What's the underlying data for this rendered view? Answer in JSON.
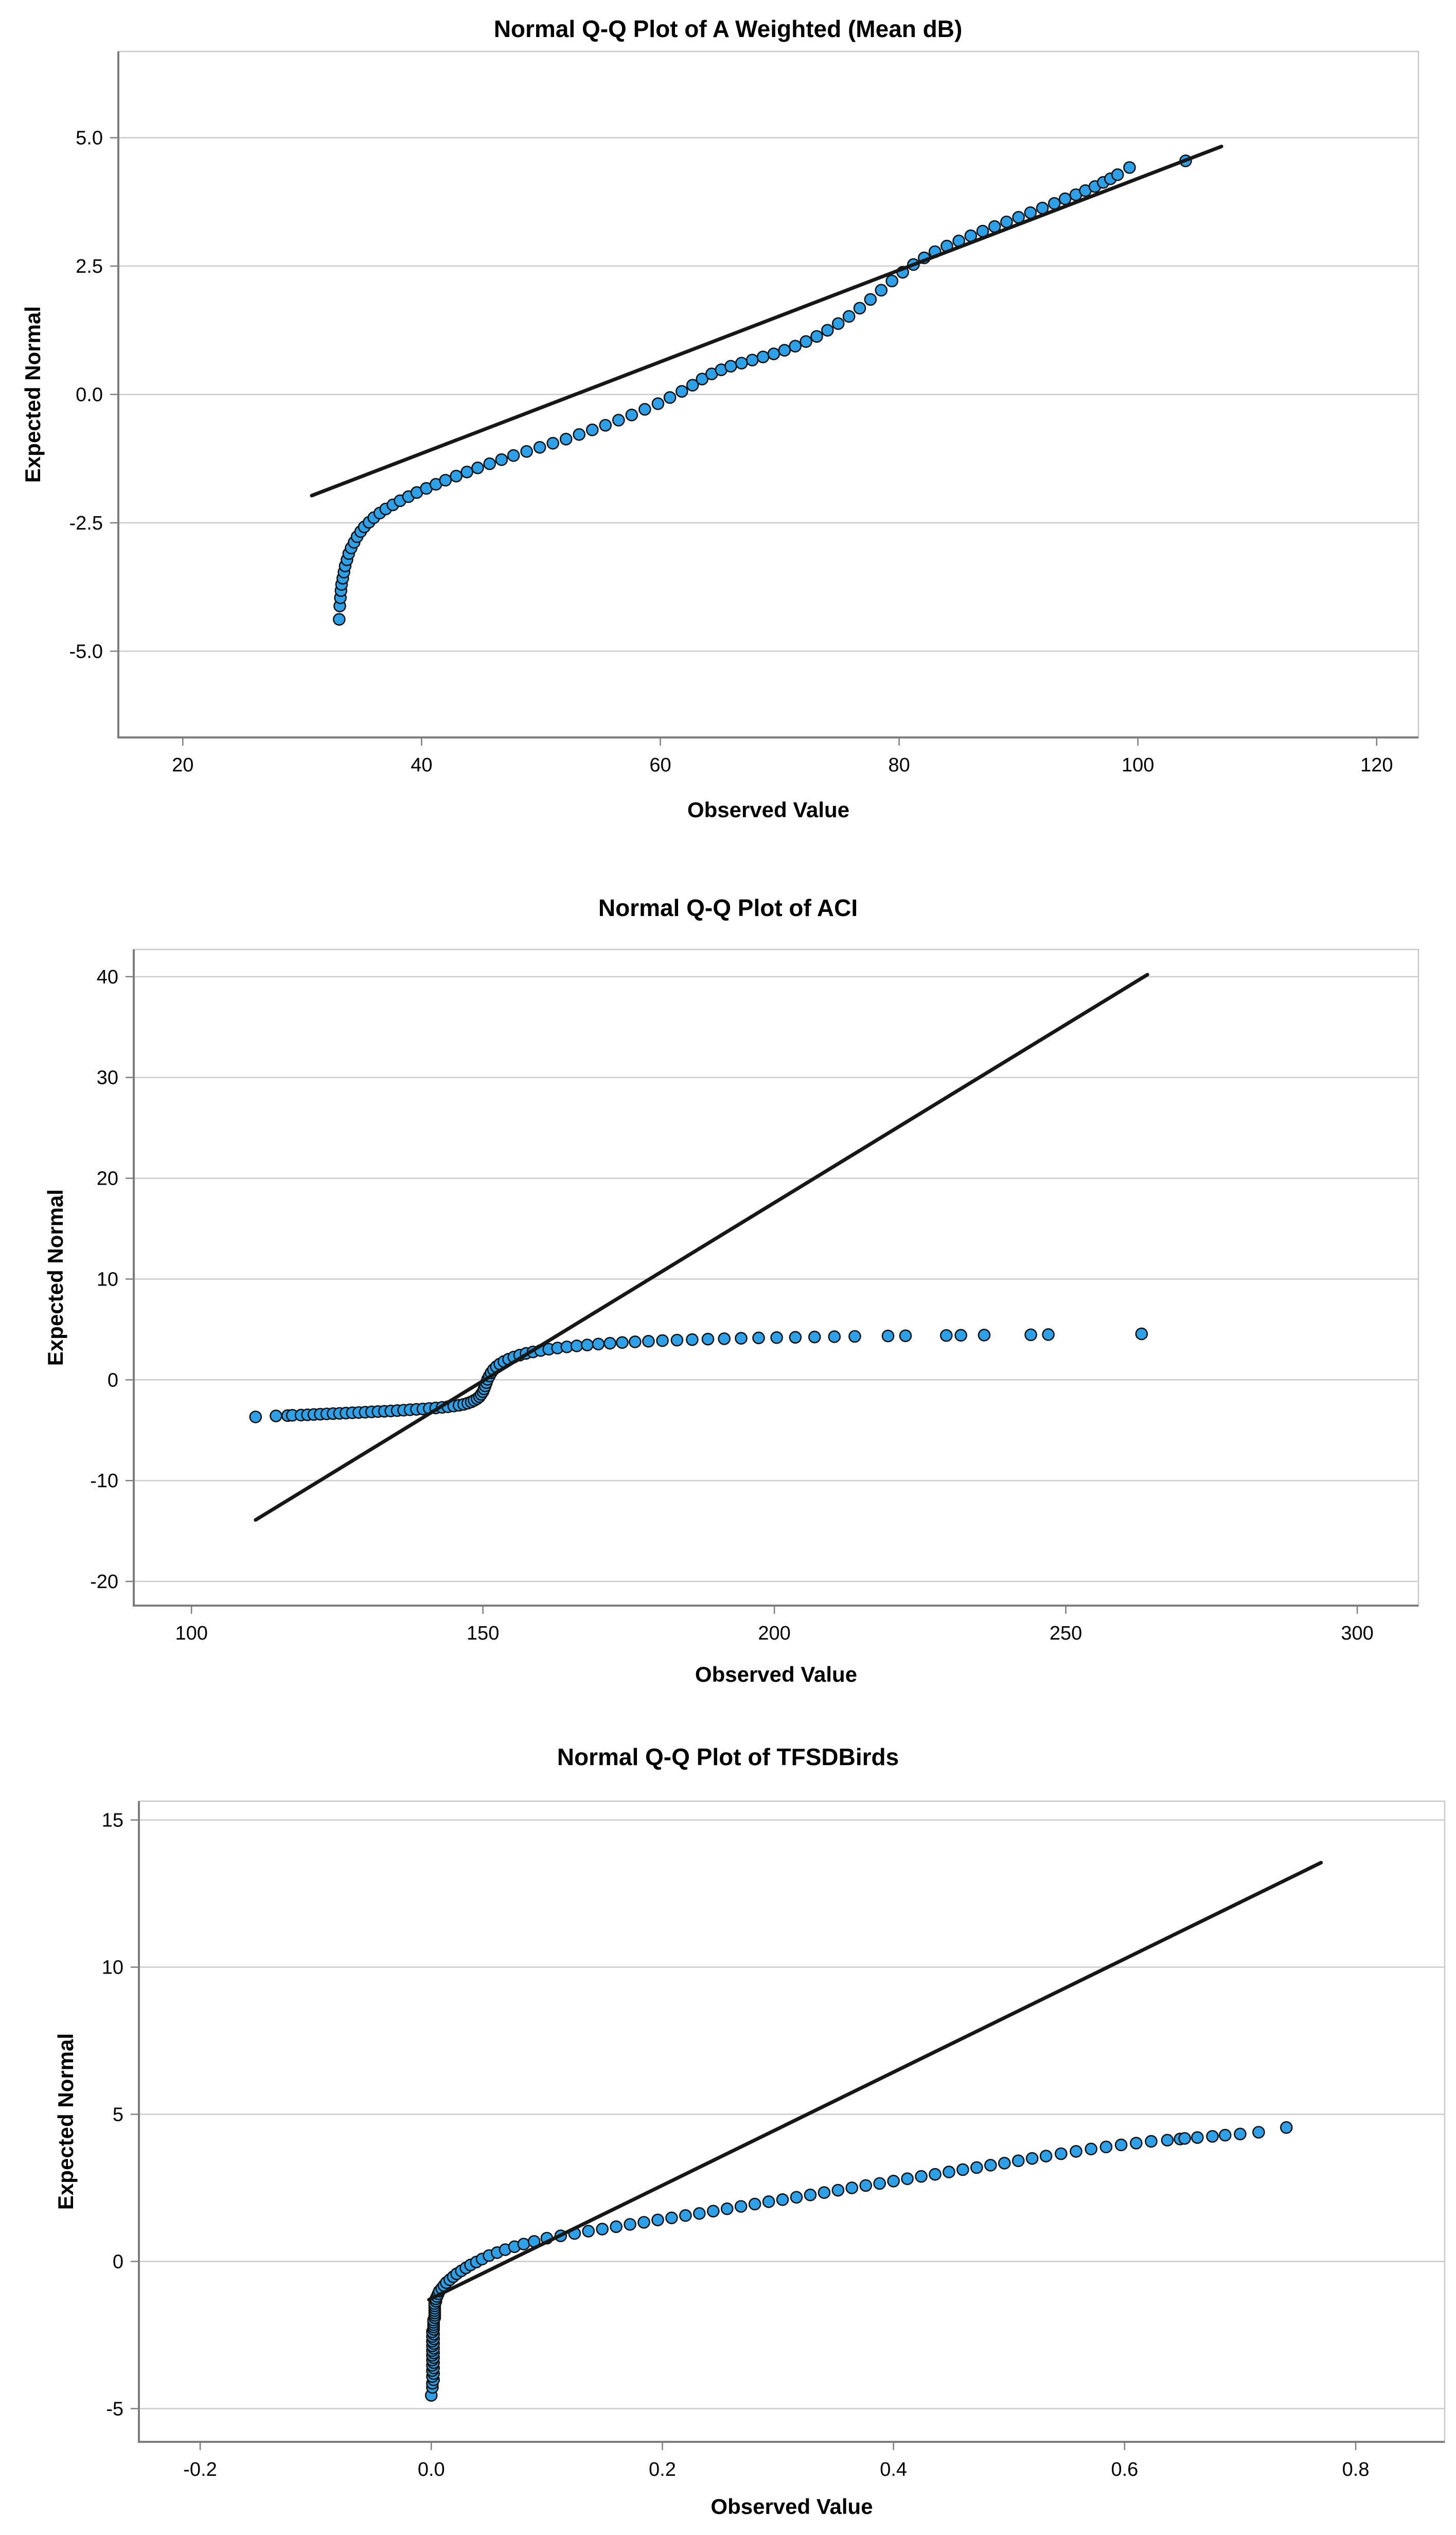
{
  "page": {
    "background": "#ffffff"
  },
  "style": {
    "point_fill": "#2da0e8",
    "point_stroke": "#111111",
    "line_color": "#171717",
    "grid_color": "#cccccc",
    "frame_color": "#c9c9c9",
    "axis_color": "#7d7d7d",
    "text_color": "#000000"
  },
  "chart_data": [
    {
      "type": "scatter",
      "title": "Normal Q-Q Plot of A Weighted (Mean dB)",
      "xlabel": "Observed Value",
      "ylabel": "Expected Normal",
      "xtick_values": [
        20,
        40,
        60,
        80,
        100,
        120
      ],
      "xtick_labels": [
        "20",
        "40",
        "60",
        "80",
        "100",
        "120"
      ],
      "ytick_values": [
        5.0,
        2.5,
        0.0,
        -2.5,
        -5.0
      ],
      "ytick_labels": [
        "5.0",
        "2.5",
        "0.0",
        "-2.5",
        "-5.0"
      ],
      "xlim": [
        14.6,
        123.5
      ],
      "ylim": [
        -6.68,
        6.68
      ],
      "grid": true,
      "legend": "none",
      "ref_line": {
        "x1": 30.8,
        "y1": -1.97,
        "x2": 107.0,
        "y2": 4.83
      },
      "points": [
        [
          33.1,
          -4.38
        ],
        [
          33.15,
          -4.12
        ],
        [
          33.2,
          -3.96
        ],
        [
          33.25,
          -3.82
        ],
        [
          33.3,
          -3.7
        ],
        [
          33.4,
          -3.58
        ],
        [
          33.5,
          -3.46
        ],
        [
          33.6,
          -3.34
        ],
        [
          33.75,
          -3.22
        ],
        [
          33.9,
          -3.1
        ],
        [
          34.1,
          -2.99
        ],
        [
          34.35,
          -2.88
        ],
        [
          34.6,
          -2.77
        ],
        [
          34.9,
          -2.67
        ],
        [
          35.2,
          -2.58
        ],
        [
          35.6,
          -2.49
        ],
        [
          36,
          -2.4
        ],
        [
          36.5,
          -2.31
        ],
        [
          37,
          -2.23
        ],
        [
          37.6,
          -2.15
        ],
        [
          38.2,
          -2.07
        ],
        [
          38.9,
          -1.99
        ],
        [
          39.6,
          -1.91
        ],
        [
          40.4,
          -1.83
        ],
        [
          41.2,
          -1.75
        ],
        [
          42,
          -1.67
        ],
        [
          42.9,
          -1.59
        ],
        [
          43.8,
          -1.51
        ],
        [
          44.7,
          -1.43
        ],
        [
          45.7,
          -1.35
        ],
        [
          46.7,
          -1.27
        ],
        [
          47.7,
          -1.19
        ],
        [
          48.8,
          -1.11
        ],
        [
          49.9,
          -1.03
        ],
        [
          51,
          -0.95
        ],
        [
          52.1,
          -0.87
        ],
        [
          53.2,
          -0.78
        ],
        [
          54.3,
          -0.69
        ],
        [
          55.4,
          -0.6
        ],
        [
          56.5,
          -0.5
        ],
        [
          57.6,
          -0.4
        ],
        [
          58.7,
          -0.29
        ],
        [
          59.8,
          -0.18
        ],
        [
          60.8,
          -0.06
        ],
        [
          61.8,
          0.06
        ],
        [
          62.7,
          0.18
        ],
        [
          63.5,
          0.3
        ],
        [
          64.3,
          0.4
        ],
        [
          65.1,
          0.48
        ],
        [
          65.9,
          0.55
        ],
        [
          66.8,
          0.61
        ],
        [
          67.7,
          0.67
        ],
        [
          68.6,
          0.73
        ],
        [
          69.5,
          0.79
        ],
        [
          70.4,
          0.86
        ],
        [
          71.3,
          0.94
        ],
        [
          72.2,
          1.03
        ],
        [
          73.1,
          1.13
        ],
        [
          74,
          1.25
        ],
        [
          74.9,
          1.38
        ],
        [
          75.8,
          1.52
        ],
        [
          76.7,
          1.68
        ],
        [
          77.6,
          1.85
        ],
        [
          78.5,
          2.03
        ],
        [
          79.4,
          2.21
        ],
        [
          80.3,
          2.38
        ],
        [
          81.2,
          2.53
        ],
        [
          82.1,
          2.66
        ],
        [
          83,
          2.78
        ],
        [
          84,
          2.89
        ],
        [
          85,
          2.99
        ],
        [
          86,
          3.09
        ],
        [
          87,
          3.18
        ],
        [
          88,
          3.27
        ],
        [
          89,
          3.36
        ],
        [
          90,
          3.45
        ],
        [
          91,
          3.54
        ],
        [
          92,
          3.63
        ],
        [
          93,
          3.72
        ],
        [
          93.9,
          3.81
        ],
        [
          94.8,
          3.89
        ],
        [
          95.6,
          3.97
        ],
        [
          96.4,
          4.05
        ],
        [
          97.1,
          4.13
        ],
        [
          97.7,
          4.2
        ],
        [
          98.3,
          4.28
        ],
        [
          99.3,
          4.42
        ],
        [
          104,
          4.55
        ]
      ]
    },
    {
      "type": "scatter",
      "title": "Normal Q-Q Plot of ACI",
      "xlabel": "Observed Value",
      "ylabel": "Expected Normal",
      "xtick_values": [
        100,
        150,
        200,
        250,
        300
      ],
      "xtick_labels": [
        "100",
        "150",
        "200",
        "250",
        "300"
      ],
      "ytick_values": [
        40,
        30,
        20,
        10,
        0,
        -10,
        -20
      ],
      "ytick_labels": [
        "40",
        "30",
        "20",
        "10",
        "0",
        "-10",
        "-20"
      ],
      "xlim": [
        90.1,
        310.5
      ],
      "ylim": [
        -22.4,
        42.7
      ],
      "grid": true,
      "legend": "none",
      "ref_line": {
        "x1": 111.0,
        "y1": -13.9,
        "x2": 264.0,
        "y2": 40.2
      },
      "points": [
        [
          111,
          -3.68
        ],
        [
          114.5,
          -3.58
        ],
        [
          116.5,
          -3.55
        ],
        [
          117.3,
          -3.52
        ],
        [
          118.8,
          -3.5
        ],
        [
          119.9,
          -3.47
        ],
        [
          121,
          -3.44
        ],
        [
          122.1,
          -3.41
        ],
        [
          123.2,
          -3.38
        ],
        [
          124.3,
          -3.35
        ],
        [
          125.4,
          -3.33
        ],
        [
          126.5,
          -3.3
        ],
        [
          127.6,
          -3.27
        ],
        [
          128.7,
          -3.24
        ],
        [
          129.8,
          -3.21
        ],
        [
          130.9,
          -3.18
        ],
        [
          132,
          -3.15
        ],
        [
          133.1,
          -3.12
        ],
        [
          134.2,
          -3.09
        ],
        [
          135.3,
          -3.05
        ],
        [
          136.4,
          -3.01
        ],
        [
          137.5,
          -2.97
        ],
        [
          138.6,
          -2.93
        ],
        [
          139.7,
          -2.89
        ],
        [
          140.8,
          -2.84
        ],
        [
          141.9,
          -2.79
        ],
        [
          143,
          -2.73
        ],
        [
          144,
          -2.67
        ],
        [
          145,
          -2.6
        ],
        [
          145.9,
          -2.52
        ],
        [
          146.7,
          -2.43
        ],
        [
          147.4,
          -2.32
        ],
        [
          148,
          -2.19
        ],
        [
          148.5,
          -2.04
        ],
        [
          149,
          -1.87
        ],
        [
          149.4,
          -1.67
        ],
        [
          149.7,
          -1.44
        ],
        [
          150,
          -1.18
        ],
        [
          150.2,
          -0.9
        ],
        [
          150.4,
          -0.6
        ],
        [
          150.6,
          -0.28
        ],
        [
          150.8,
          0.05
        ],
        [
          151.1,
          0.38
        ],
        [
          151.4,
          0.7
        ],
        [
          151.8,
          1.01
        ],
        [
          152.3,
          1.3
        ],
        [
          152.9,
          1.57
        ],
        [
          153.6,
          1.82
        ],
        [
          154.4,
          2.05
        ],
        [
          155.3,
          2.26
        ],
        [
          156.3,
          2.45
        ],
        [
          157.4,
          2.62
        ],
        [
          158.6,
          2.77
        ],
        [
          159.9,
          2.91
        ],
        [
          161.3,
          3.04
        ],
        [
          162.8,
          3.16
        ],
        [
          164.4,
          3.27
        ],
        [
          166.1,
          3.37
        ],
        [
          167.9,
          3.46
        ],
        [
          169.8,
          3.55
        ],
        [
          171.8,
          3.63
        ],
        [
          173.9,
          3.7
        ],
        [
          176.1,
          3.77
        ],
        [
          178.4,
          3.83
        ],
        [
          180.8,
          3.89
        ],
        [
          183.3,
          3.94
        ],
        [
          185.9,
          3.99
        ],
        [
          188.6,
          4.04
        ],
        [
          191.4,
          4.08
        ],
        [
          194.3,
          4.12
        ],
        [
          197.3,
          4.16
        ],
        [
          200.4,
          4.19
        ],
        [
          203.6,
          4.22
        ],
        [
          206.9,
          4.25
        ],
        [
          210.3,
          4.28
        ],
        [
          213.8,
          4.31
        ],
        [
          219.5,
          4.35
        ],
        [
          222.5,
          4.37
        ],
        [
          229.5,
          4.4
        ],
        [
          232,
          4.42
        ],
        [
          236,
          4.44
        ],
        [
          244,
          4.47
        ],
        [
          247,
          4.49
        ],
        [
          263,
          4.56
        ]
      ]
    },
    {
      "type": "scatter",
      "title": "Normal Q-Q Plot of TFSDBirds",
      "xlabel": "Observed Value",
      "ylabel": "Expected Normal",
      "xtick_values": [
        -0.2,
        0.0,
        0.2,
        0.4,
        0.6,
        0.8
      ],
      "xtick_labels": [
        "-0.2",
        "0.0",
        "0.2",
        "0.4",
        "0.6",
        "0.8"
      ],
      "ytick_values": [
        15,
        10,
        5,
        0,
        -5
      ],
      "ytick_labels": [
        "15",
        "10",
        "5",
        "0",
        "-5"
      ],
      "xlim": [
        -0.253,
        0.877
      ],
      "ylim": [
        -6.13,
        15.64
      ],
      "grid": true,
      "legend": "none",
      "ref_line": {
        "x1": -0.002,
        "y1": -1.3,
        "x2": 0.77,
        "y2": 13.55
      },
      "points": [
        [
          0,
          -4.55
        ],
        [
          0.001,
          -4.28
        ],
        [
          0.001,
          -4.14
        ],
        [
          0.002,
          -4.02
        ],
        [
          0.001,
          -3.91
        ],
        [
          0.002,
          -3.81
        ],
        [
          0.001,
          -3.71
        ],
        [
          0.002,
          -3.62
        ],
        [
          0.001,
          -3.53
        ],
        [
          0.002,
          -3.44
        ],
        [
          0.001,
          -3.35
        ],
        [
          0.002,
          -3.27
        ],
        [
          0.001,
          -3.19
        ],
        [
          0.002,
          -3.11
        ],
        [
          0.001,
          -3.03
        ],
        [
          0.002,
          -2.95
        ],
        [
          0.001,
          -2.87
        ],
        [
          0.002,
          -2.79
        ],
        [
          0.001,
          -2.71
        ],
        [
          0.002,
          -2.63
        ],
        [
          0.001,
          -2.55
        ],
        [
          0.002,
          -2.47
        ],
        [
          0.001,
          -2.39
        ],
        [
          0.002,
          -2.31
        ],
        [
          0.002,
          -2.23
        ],
        [
          0.002,
          -2.15
        ],
        [
          0.002,
          -2.07
        ],
        [
          0.002,
          -1.99
        ],
        [
          0.003,
          -1.91
        ],
        [
          0.003,
          -1.83
        ],
        [
          0.003,
          -1.75
        ],
        [
          0.003,
          -1.67
        ],
        [
          0.003,
          -1.59
        ],
        [
          0.003,
          -1.51
        ],
        [
          0.003,
          -1.43
        ],
        [
          0.004,
          -1.35
        ],
        [
          0.004,
          -1.27
        ],
        [
          0.005,
          -1.19
        ],
        [
          0.006,
          -1.1
        ],
        [
          0.007,
          -1.01
        ],
        [
          0.009,
          -0.92
        ],
        [
          0.011,
          -0.82
        ],
        [
          0.013,
          -0.72
        ],
        [
          0.016,
          -0.62
        ],
        [
          0.019,
          -0.52
        ],
        [
          0.022,
          -0.42
        ],
        [
          0.026,
          -0.32
        ],
        [
          0.03,
          -0.22
        ],
        [
          0.034,
          -0.12
        ],
        [
          0.039,
          -0.02
        ],
        [
          0.044,
          0.08
        ],
        [
          0.05,
          0.2
        ],
        [
          0.057,
          0.3
        ],
        [
          0.064,
          0.4
        ],
        [
          0.072,
          0.5
        ],
        [
          0.08,
          0.59
        ],
        [
          0.089,
          0.68
        ],
        [
          0.1,
          0.79
        ],
        [
          0.112,
          0.87
        ],
        [
          0.124,
          0.95
        ],
        [
          0.136,
          1.03
        ],
        [
          0.148,
          1.1
        ],
        [
          0.16,
          1.18
        ],
        [
          0.172,
          1.26
        ],
        [
          0.184,
          1.33
        ],
        [
          0.196,
          1.41
        ],
        [
          0.208,
          1.48
        ],
        [
          0.22,
          1.56
        ],
        [
          0.232,
          1.63
        ],
        [
          0.244,
          1.71
        ],
        [
          0.256,
          1.79
        ],
        [
          0.268,
          1.87
        ],
        [
          0.28,
          1.95
        ],
        [
          0.292,
          2.03
        ],
        [
          0.304,
          2.1
        ],
        [
          0.316,
          2.18
        ],
        [
          0.328,
          2.26
        ],
        [
          0.34,
          2.34
        ],
        [
          0.352,
          2.42
        ],
        [
          0.364,
          2.5
        ],
        [
          0.376,
          2.58
        ],
        [
          0.388,
          2.65
        ],
        [
          0.4,
          2.73
        ],
        [
          0.412,
          2.81
        ],
        [
          0.424,
          2.89
        ],
        [
          0.436,
          2.96
        ],
        [
          0.448,
          3.04
        ],
        [
          0.46,
          3.12
        ],
        [
          0.472,
          3.19
        ],
        [
          0.484,
          3.27
        ],
        [
          0.496,
          3.34
        ],
        [
          0.508,
          3.42
        ],
        [
          0.52,
          3.5
        ],
        [
          0.532,
          3.58
        ],
        [
          0.545,
          3.66
        ],
        [
          0.558,
          3.74
        ],
        [
          0.571,
          3.82
        ],
        [
          0.584,
          3.89
        ],
        [
          0.597,
          3.96
        ],
        [
          0.61,
          4.02
        ],
        [
          0.623,
          4.08
        ],
        [
          0.637,
          4.12
        ],
        [
          0.648,
          4.16
        ],
        [
          0.652,
          4.18
        ],
        [
          0.663,
          4.21
        ],
        [
          0.676,
          4.25
        ],
        [
          0.687,
          4.29
        ],
        [
          0.7,
          4.33
        ],
        [
          0.716,
          4.39
        ],
        [
          0.74,
          4.55
        ]
      ]
    }
  ]
}
